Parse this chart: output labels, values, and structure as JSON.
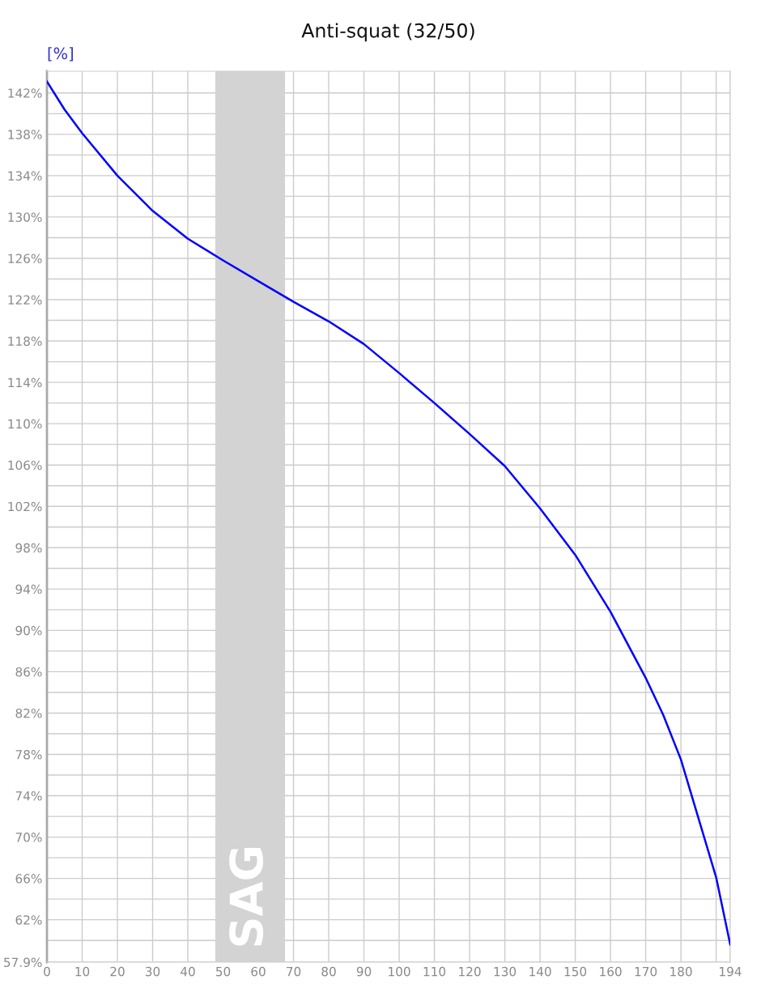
{
  "chart_data": {
    "type": "line",
    "title": "Anti-squat (32/50)",
    "ylabel": "[%]",
    "x": [
      0,
      5,
      10,
      20,
      30,
      40,
      50,
      60,
      70,
      80,
      90,
      100,
      110,
      120,
      130,
      140,
      150,
      160,
      170,
      175,
      180,
      185,
      190,
      194
    ],
    "series": [
      {
        "color": "#0000ff",
        "values": [
          143.1,
          140.4,
          138.1,
          134.0,
          130.6,
          127.9,
          125.8,
          123.8,
          121.8,
          119.9,
          117.7,
          114.9,
          112.0,
          109.0,
          105.9,
          101.8,
          97.3,
          91.8,
          85.4,
          81.8,
          77.5,
          71.8,
          66.1,
          59.6
        ]
      }
    ],
    "xlim": [
      0,
      194
    ],
    "ylim": [
      57.9,
      144.1
    ],
    "xticks": [
      0,
      10,
      20,
      30,
      40,
      50,
      60,
      70,
      80,
      90,
      100,
      110,
      120,
      130,
      140,
      150,
      160,
      170,
      180,
      {
        "value": 190,
        "label": null
      },
      194
    ],
    "yticks": [
      {
        "value": 57.9,
        "label": "57.9%"
      },
      {
        "value": 60,
        "label": null
      },
      {
        "value": 62,
        "label": "62%"
      },
      {
        "value": 64,
        "label": null
      },
      {
        "value": 66,
        "label": "66%"
      },
      {
        "value": 68,
        "label": null
      },
      {
        "value": 70,
        "label": "70%"
      },
      {
        "value": 72,
        "label": null
      },
      {
        "value": 74,
        "label": "74%"
      },
      {
        "value": 76,
        "label": null
      },
      {
        "value": 78,
        "label": "78%"
      },
      {
        "value": 80,
        "label": null
      },
      {
        "value": 82,
        "label": "82%"
      },
      {
        "value": 84,
        "label": null
      },
      {
        "value": 86,
        "label": "86%"
      },
      {
        "value": 88,
        "label": null
      },
      {
        "value": 90,
        "label": "90%"
      },
      {
        "value": 92,
        "label": null
      },
      {
        "value": 94,
        "label": "94%"
      },
      {
        "value": 96,
        "label": null
      },
      {
        "value": 98,
        "label": "98%"
      },
      {
        "value": 100,
        "label": null
      },
      {
        "value": 102,
        "label": "102%"
      },
      {
        "value": 104,
        "label": null
      },
      {
        "value": 106,
        "label": "106%"
      },
      {
        "value": 108,
        "label": null
      },
      {
        "value": 110,
        "label": "110%"
      },
      {
        "value": 112,
        "label": null
      },
      {
        "value": 114,
        "label": "114%"
      },
      {
        "value": 116,
        "label": null
      },
      {
        "value": 118,
        "label": "118%"
      },
      {
        "value": 120,
        "label": null
      },
      {
        "value": 122,
        "label": "122%"
      },
      {
        "value": 124,
        "label": null
      },
      {
        "value": 126,
        "label": "126%"
      },
      {
        "value": 128,
        "label": null
      },
      {
        "value": 130,
        "label": "130%"
      },
      {
        "value": 132,
        "label": null
      },
      {
        "value": 134,
        "label": "134%"
      },
      {
        "value": 136,
        "label": null
      },
      {
        "value": 138,
        "label": "138%"
      },
      {
        "value": 140,
        "label": null
      },
      {
        "value": 142,
        "label": "142%"
      }
    ],
    "bands": [
      {
        "axis": "x",
        "from": 47.8,
        "to": 67.6,
        "label": "SAG",
        "color": "#d3d3d3"
      }
    ],
    "grid": true,
    "marker": "none",
    "line_style": "solid",
    "legend": false
  }
}
